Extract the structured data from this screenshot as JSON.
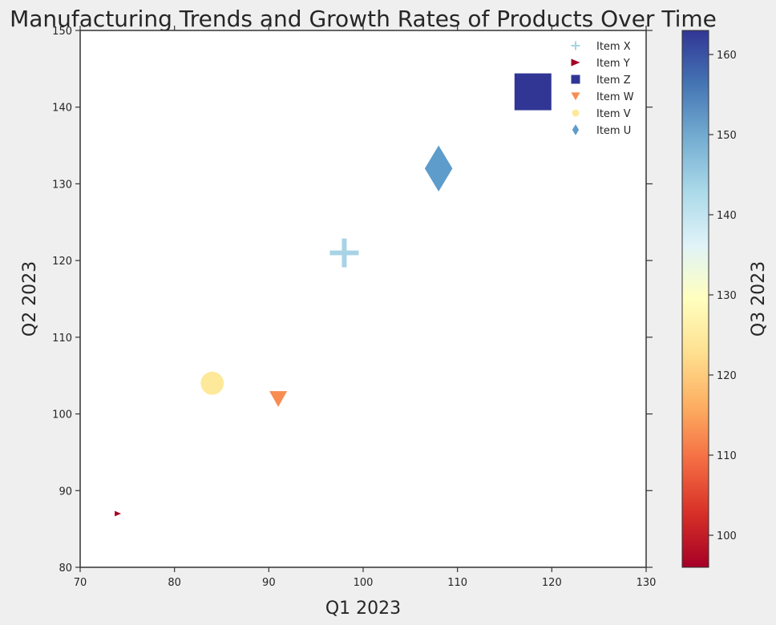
{
  "chart_data": {
    "type": "scatter",
    "title": "Manufacturing Trends and Growth Rates of Products Over Time",
    "xlabel": "Q1 2023",
    "ylabel": "Q2 2023",
    "colorbar_label": "Q3 2023",
    "xlim": [
      70,
      130
    ],
    "ylim": [
      80,
      150
    ],
    "xticks": [
      70,
      80,
      90,
      100,
      110,
      120,
      130
    ],
    "yticks": [
      80,
      90,
      100,
      110,
      120,
      130,
      140,
      150
    ],
    "colorbar_range": [
      96,
      163
    ],
    "colorbar_ticks": [
      100,
      110,
      120,
      130,
      140,
      150,
      160
    ],
    "legend_position": "top-right",
    "series": [
      {
        "name": "Item X",
        "marker": "plus",
        "x": 98,
        "y": 121,
        "q3": 143,
        "color": "#a7d3e6",
        "size": "medium"
      },
      {
        "name": "Item Y",
        "marker": "triangle-right",
        "x": 74,
        "y": 87,
        "q3": 96,
        "color": "#a50026",
        "size": "tiny"
      },
      {
        "name": "Item Z",
        "marker": "square",
        "x": 118,
        "y": 142,
        "q3": 163,
        "color": "#313695",
        "size": "large"
      },
      {
        "name": "Item W",
        "marker": "triangle-down",
        "x": 91,
        "y": 102,
        "q3": 114,
        "color": "#f88d52",
        "size": "small"
      },
      {
        "name": "Item V",
        "marker": "circle",
        "x": 84,
        "y": 104,
        "q3": 128,
        "color": "#fee99a",
        "size": "medium"
      },
      {
        "name": "Item U",
        "marker": "diamond",
        "x": 108,
        "y": 132,
        "q3": 152,
        "color": "#5e9ccb",
        "size": "large"
      }
    ]
  }
}
